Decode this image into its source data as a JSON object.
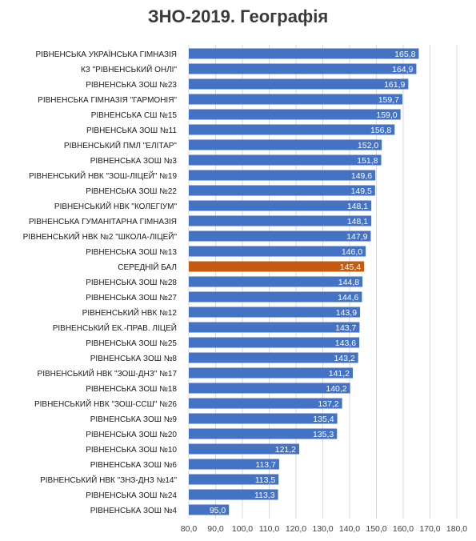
{
  "chart_data": {
    "type": "bar",
    "orientation": "horizontal",
    "title": "ЗНО-2019. Географія",
    "xlabel": "",
    "ylabel": "",
    "xlim": [
      80,
      180
    ],
    "x_ticks": [
      "80,0",
      "90,0",
      "100,0",
      "110,0",
      "120,0",
      "130,0",
      "140,0",
      "150,0",
      "160,0",
      "170,0",
      "180,0"
    ],
    "grid": "vertical",
    "colors": {
      "default": "#4472C4",
      "highlight": "#C55A11"
    },
    "highlight_category": "СЕРЕДНІЙ БАЛ",
    "categories": [
      "РІВНЕНСЬКА УКРАЇНСЬКА ГІМНАЗІЯ",
      "КЗ \"РІВНЕНСЬКИЙ ОНЛІ\"",
      "РІВНЕНСЬКА ЗОШ №23",
      "РІВНЕНСЬКА ГІМНАЗІЯ \"ГАРМОНІЯ\"",
      "РІВНЕНСЬКА СШ №15",
      "РІВНЕНСЬКА ЗОШ №11",
      "РІВНЕНСЬКИЙ ПМЛ \"ЕЛІТАР\"",
      "РІВНЕНСЬКА ЗОШ №3",
      "РІВНЕНСЬКИЙ НВК \"ЗОШ-ЛІЦЕЙ\" №19",
      "РІВНЕНСЬКА ЗОШ №22",
      "РІВНЕНСЬКИЙ НВК \"КОЛЕГІУМ\"",
      "РІВНЕНСЬКА ГУМАНІТАРНА ГІМНАЗІЯ",
      "РІВНЕНСЬКИЙ НВК №2 \"ШКОЛА-ЛІЦЕЙ\"",
      "РІВНЕНСЬКА ЗОШ №13",
      "СЕРЕДНІЙ БАЛ",
      "РІВНЕНСЬКА ЗОШ №28",
      "РІВНЕНСЬКА ЗОШ №27",
      "РІВНЕНСЬКИЙ НВК №12",
      "РІВНЕНСЬКИЙ ЕК.-ПРАВ. ЛІЦЕЙ",
      "РІВНЕНСЬКА ЗОШ №25",
      "РІВНЕНСЬКА ЗОШ №8",
      "РІВНЕНСЬКИЙ НВК \"ЗОШ-ДНЗ\" №17",
      "РІВНЕНСЬКА ЗОШ №18",
      "РІВНЕНСЬКИЙ НВК \"ЗОШ-ССШ\" №26",
      "РІВНЕНСЬКА ЗОШ №9",
      "РІВНЕНСЬКА ЗОШ №20",
      "РІВНЕНСЬКА ЗОШ №10",
      "РІВНЕНСЬКА ЗОШ №6",
      "РІВНЕНСЬКИЙ НВК \"ЗНЗ-ДНЗ №14\"",
      "РІВНЕНСЬКА ЗОШ №24",
      "РІВНЕНСЬКА ЗОШ №4"
    ],
    "values": [
      165.8,
      164.9,
      161.9,
      159.7,
      159.0,
      156.8,
      152.0,
      151.8,
      149.6,
      149.5,
      148.1,
      148.1,
      147.9,
      146.0,
      145.4,
      144.8,
      144.6,
      143.9,
      143.7,
      143.6,
      143.2,
      141.2,
      140.2,
      137.2,
      135.4,
      135.3,
      121.2,
      113.7,
      113.5,
      113.3,
      95.0
    ],
    "value_labels": [
      "165,8",
      "164,9",
      "161,9",
      "159,7",
      "159,0",
      "156,8",
      "152,0",
      "151,8",
      "149,6",
      "149,5",
      "148,1",
      "148,1",
      "147,9",
      "146,0",
      "145,4",
      "144,8",
      "144,6",
      "143,9",
      "143,7",
      "143,6",
      "143,2",
      "141,2",
      "140,2",
      "137,2",
      "135,4",
      "135,3",
      "121,2",
      "113,7",
      "113,5",
      "113,3",
      "95,0"
    ]
  }
}
